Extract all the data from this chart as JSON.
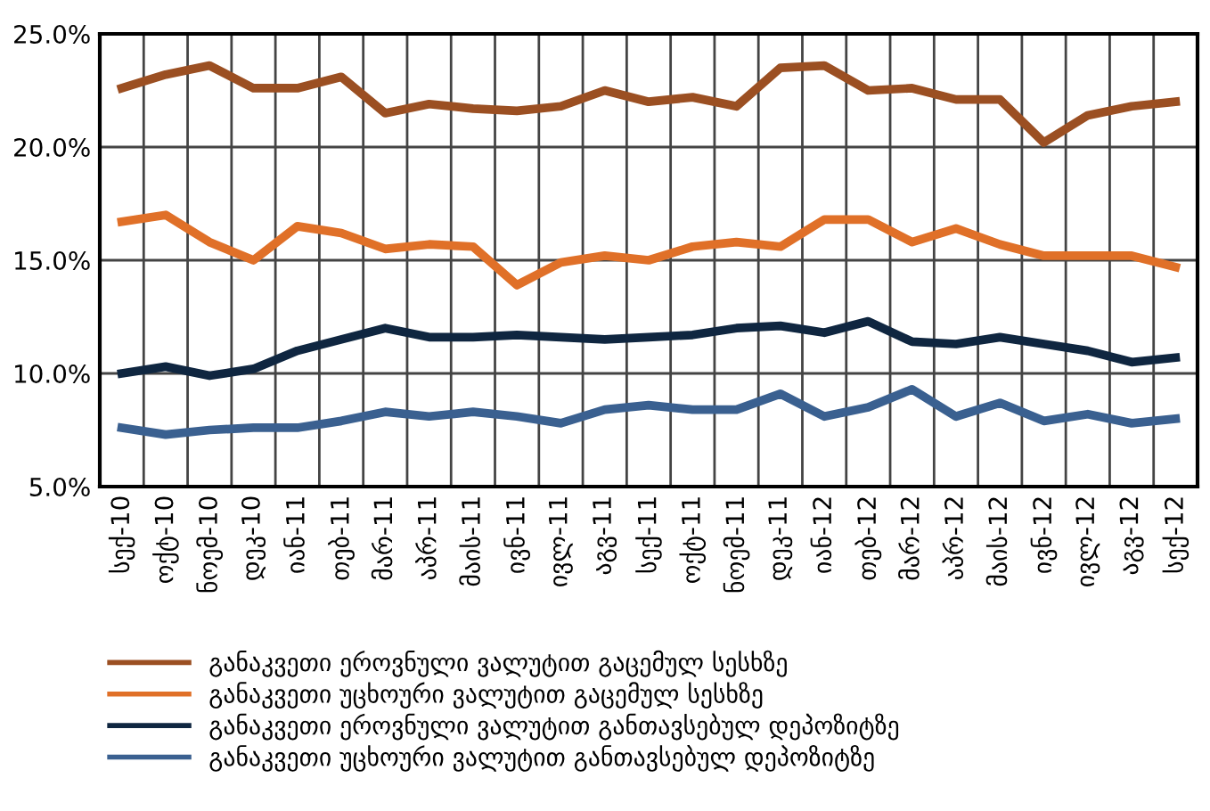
{
  "chart_data": {
    "type": "line",
    "categories": [
      "სექ-10",
      "ოქტ-10",
      "ნოემ-10",
      "დეკ-10",
      "იან-11",
      "თებ-11",
      "მარ-11",
      "აპრ-11",
      "მაის-11",
      "ივნ-11",
      "ივლ-11",
      "აგვ-11",
      "სექ-11",
      "ოქტ-11",
      "ნოემ-11",
      "დეკ-11",
      "იან-12",
      "თებ-12",
      "მარ-12",
      "აპრ-12",
      "მაის-12",
      "ივნ-12",
      "ივლ-12",
      "აგვ-12",
      "სექ-12"
    ],
    "series": [
      {
        "name": "განაკვეთი ეროვნული ვალუტით გაცემულ სესხზე",
        "color": "#9b4f22",
        "values": [
          22.6,
          23.2,
          23.6,
          22.6,
          22.6,
          23.1,
          21.5,
          21.9,
          21.7,
          21.6,
          21.8,
          22.5,
          22.0,
          22.2,
          21.8,
          23.5,
          23.6,
          22.5,
          22.6,
          22.1,
          22.1,
          20.2,
          21.4,
          21.8,
          22.0
        ]
      },
      {
        "name": "განაკვეთი უცხოური ვალუტით გაცემულ სესხზე",
        "color": "#e07028",
        "values": [
          16.7,
          17.0,
          15.8,
          15.0,
          16.5,
          16.2,
          15.5,
          15.7,
          15.6,
          13.9,
          14.9,
          15.2,
          15.0,
          15.6,
          15.8,
          15.6,
          16.8,
          16.8,
          15.8,
          16.4,
          15.7,
          15.2,
          15.2,
          15.2,
          14.7
        ]
      },
      {
        "name": "განაკვეთი ეროვნული ვალუტით განთავსებულ დეპოზიტზე",
        "color": "#0f2640",
        "values": [
          10.0,
          10.3,
          9.9,
          10.2,
          11.0,
          11.5,
          12.0,
          11.6,
          11.6,
          11.7,
          11.6,
          11.5,
          11.6,
          11.7,
          12.0,
          12.1,
          11.8,
          12.3,
          11.4,
          11.3,
          11.6,
          11.3,
          11.0,
          10.5,
          10.7
        ]
      },
      {
        "name": "განაკვეთი უცხოური ვალუტით განთავსებულ დეპოზიტზე",
        "color": "#3a6090",
        "values": [
          7.6,
          7.3,
          7.5,
          7.6,
          7.6,
          7.9,
          8.3,
          8.1,
          8.3,
          8.1,
          7.8,
          8.4,
          8.6,
          8.4,
          8.4,
          9.1,
          8.1,
          8.5,
          9.3,
          8.1,
          8.7,
          7.9,
          8.2,
          7.8,
          8.0
        ]
      }
    ],
    "ylim": [
      5,
      25
    ],
    "yticks": [
      {
        "value": 5,
        "label": "5.0%"
      },
      {
        "value": 10,
        "label": "10.0%"
      },
      {
        "value": 15,
        "label": "15.0%"
      },
      {
        "value": 20,
        "label": "20.0%"
      },
      {
        "value": 25,
        "label": "25.0%"
      }
    ],
    "grid": true,
    "legend": "bottom",
    "marker": "none",
    "line_style": "solid"
  }
}
